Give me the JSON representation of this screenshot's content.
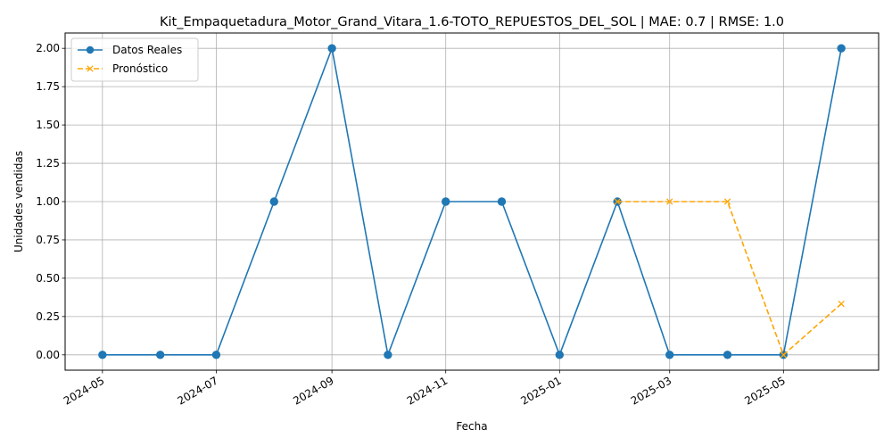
{
  "chart_data": {
    "type": "line",
    "title": "Kit_Empaquetadura_Motor_Grand_Vitara_1.6-TOTO_REPUESTOS_DEL_SOL | MAE: 0.7 | RMSE: 1.0",
    "xlabel": "Fecha",
    "ylabel": "Unidades vendidas",
    "ylim": [
      -0.1,
      2.1
    ],
    "yticks": [
      "0.00",
      "0.25",
      "0.50",
      "0.75",
      "1.00",
      "1.25",
      "1.50",
      "1.75",
      "2.00"
    ],
    "xticks": [
      "2024-05",
      "2024-07",
      "2024-09",
      "2024-11",
      "2025-01",
      "2025-03",
      "2025-05"
    ],
    "xlim": [
      "2024-04-11",
      "2025-06-21"
    ],
    "grid": true,
    "legend_position": "top-left",
    "series": [
      {
        "name": "Datos Reales",
        "color": "#1f77b4",
        "style": "solid",
        "marker": "circle",
        "x": [
          "2024-05-01",
          "2024-06-01",
          "2024-07-01",
          "2024-08-01",
          "2024-09-01",
          "2024-10-01",
          "2024-11-01",
          "2024-12-01",
          "2025-01-01",
          "2025-02-01",
          "2025-03-01",
          "2025-04-01",
          "2025-05-01",
          "2025-06-01"
        ],
        "values": [
          0,
          0,
          0,
          1,
          2,
          0,
          1,
          1,
          0,
          1,
          0,
          0,
          0,
          2
        ]
      },
      {
        "name": "Pronóstico",
        "color": "#ffa500",
        "style": "dashed",
        "marker": "x",
        "x": [
          "2025-02-01",
          "2025-03-01",
          "2025-04-01",
          "2025-05-01",
          "2025-06-01"
        ],
        "values": [
          1,
          1,
          1,
          0,
          0.333
        ]
      }
    ]
  }
}
